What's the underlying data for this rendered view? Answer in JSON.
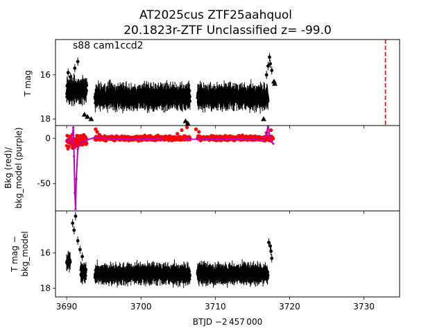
{
  "figure": {
    "title_line1": "AT2025cus  ZTF25aahquol",
    "title_line2": "20.1823r-ZTF Unclassified z= -99.0"
  },
  "colors": {
    "data": "#000000",
    "background_points": "#ff0000",
    "background_model": "#bf00bf",
    "event_marker": "#ff0000"
  },
  "chart_data": [
    {
      "type": "scatter",
      "panel": "top",
      "annotation": "s88 cam1ccd2",
      "xlabel": "",
      "ylabel": "T mag",
      "xlim": [
        3688.5,
        3734.8
      ],
      "ylim": [
        18.3,
        14.4
      ],
      "y_inverted": true,
      "yticks": [
        16,
        18
      ],
      "grid": false,
      "event_time": 3732.9,
      "series": [
        {
          "marker": "circle-with-errorbars",
          "segments": [
            {
              "x_range": [
                3690.0,
                3692.7
              ],
              "mag_center": 16.7,
              "mag_spread": 0.55
            },
            {
              "x_range": [
                3693.8,
                3706.6
              ],
              "mag_center": 17.0,
              "mag_spread": 0.5
            },
            {
              "x_range": [
                3707.6,
                3717.1
              ],
              "mag_center": 17.0,
              "mag_spread": 0.5
            }
          ],
          "points": [
            [
              3690.2,
              15.9
            ],
            [
              3690.5,
              16.1
            ],
            [
              3691.1,
              15.7
            ],
            [
              3691.5,
              15.4
            ],
            [
              3692.2,
              16.3
            ],
            [
              3716.9,
              16.0
            ],
            [
              3717.1,
              15.6
            ],
            [
              3717.3,
              15.2
            ],
            [
              3717.4,
              15.5
            ],
            [
              3717.6,
              15.8
            ]
          ]
        },
        {
          "marker": "triangle-up (upper limits)",
          "points": [
            [
              3692.4,
              17.8
            ],
            [
              3692.8,
              17.9
            ],
            [
              3693.3,
              18.0
            ],
            [
              3706.0,
              18.1
            ],
            [
              3706.3,
              18.2
            ],
            [
              3716.5,
              18.0
            ],
            [
              3717.9,
              16.3
            ],
            [
              3718.0,
              16.4
            ]
          ]
        }
      ]
    },
    {
      "type": "scatter",
      "panel": "middle",
      "xlabel": "",
      "ylabel_line1": "Bkg (red)/",
      "ylabel_line2": "bkg_model (purple)",
      "xlim": [
        3688.5,
        3734.8
      ],
      "ylim": [
        -80,
        14
      ],
      "yticks": [
        0,
        -50
      ],
      "grid": false,
      "series": [
        {
          "kind": "background",
          "segments": [
            {
              "x_range": [
                3690.0,
                3692.7
              ],
              "center": -3,
              "spread": 12
            },
            {
              "x_range": [
                3693.8,
                3706.6
              ],
              "center": 0,
              "spread": 4
            },
            {
              "x_range": [
                3707.6,
                3717.8
              ],
              "center": 0,
              "spread": 4
            }
          ],
          "points": [
            [
              3693.9,
              10
            ],
            [
              3694.1,
              7
            ],
            [
              3694.4,
              4
            ],
            [
              3704.9,
              5
            ],
            [
              3705.5,
              9
            ],
            [
              3706.2,
              12
            ],
            [
              3707.4,
              10
            ],
            [
              3707.8,
              7
            ],
            [
              3716.9,
              6
            ],
            [
              3717.5,
              9
            ]
          ]
        },
        {
          "kind": "bkg_model",
          "points": [
            [
              3690.0,
              -2
            ],
            [
              3690.5,
              -4
            ],
            [
              3690.8,
              5
            ],
            [
              3690.9,
              12
            ],
            [
              3691.0,
              -20
            ],
            [
              3691.1,
              -60
            ],
            [
              3691.2,
              -78
            ],
            [
              3691.3,
              -45
            ],
            [
              3691.5,
              -12
            ],
            [
              3691.8,
              -6
            ],
            [
              3692.3,
              -3
            ],
            [
              3692.7,
              -2
            ],
            [
              3693.8,
              1
            ],
            [
              3695.0,
              0
            ],
            [
              3697.0,
              -1
            ],
            [
              3700.0,
              -1
            ],
            [
              3703.0,
              -1
            ],
            [
              3706.0,
              -1
            ],
            [
              3706.6,
              -1
            ],
            [
              3707.6,
              -1
            ],
            [
              3710.0,
              -1
            ],
            [
              3713.0,
              -1
            ],
            [
              3715.0,
              -1
            ],
            [
              3716.5,
              -2
            ],
            [
              3716.9,
              5
            ],
            [
              3717.1,
              14
            ],
            [
              3717.3,
              3
            ],
            [
              3717.6,
              -4
            ],
            [
              3717.8,
              -6
            ]
          ]
        }
      ]
    },
    {
      "type": "scatter",
      "panel": "bottom",
      "xlabel": "BTJD −2 457 000",
      "ylabel_line1": "T mag −",
      "ylabel_line2": "bkg_model",
      "xlim": [
        3688.5,
        3734.8
      ],
      "ylim": [
        18.5,
        13.6
      ],
      "y_inverted": true,
      "xticks": [
        3690,
        3700,
        3710,
        3720,
        3730
      ],
      "yticks": [
        16,
        18
      ],
      "grid": false,
      "series": [
        {
          "marker": "circle-with-errorbars",
          "segments": [
            {
              "x_range": [
                3690.0,
                3690.5
              ],
              "mag_center": 16.5,
              "mag_spread": 0.4
            },
            {
              "x_range": [
                3691.9,
                3692.6
              ],
              "mag_center": 17.1,
              "mag_spread": 0.6
            },
            {
              "x_range": [
                3693.8,
                3706.6
              ],
              "mag_center": 17.2,
              "mag_spread": 0.55
            },
            {
              "x_range": [
                3707.6,
                3717.1
              ],
              "mag_center": 17.2,
              "mag_spread": 0.55
            }
          ],
          "points": [
            [
              3690.8,
              14.3
            ],
            [
              3691.0,
              14.7
            ],
            [
              3691.2,
              13.9
            ],
            [
              3691.5,
              15.3
            ],
            [
              3691.8,
              15.8
            ],
            [
              3692.1,
              16.2
            ],
            [
              3717.2,
              15.4
            ],
            [
              3717.4,
              15.6
            ],
            [
              3717.5,
              15.9
            ],
            [
              3717.6,
              16.3
            ]
          ]
        }
      ]
    }
  ]
}
